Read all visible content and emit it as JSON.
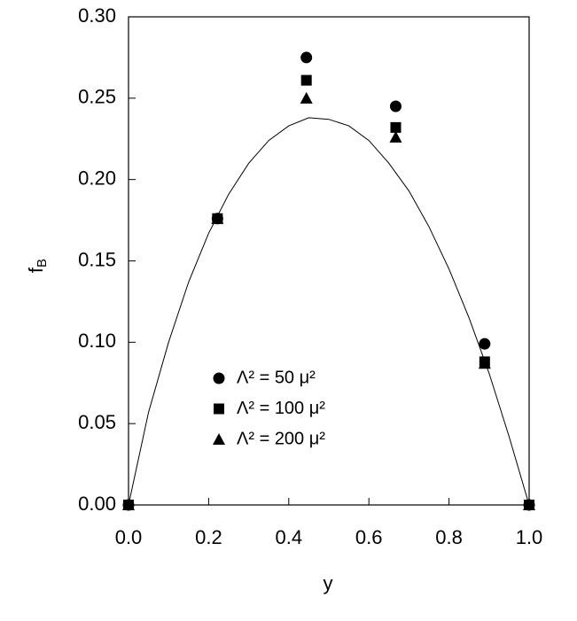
{
  "chart_data": {
    "type": "scatter",
    "x_label": "y",
    "y_label": {
      "text": "f",
      "subscript": "B"
    },
    "xlim": [
      0,
      1
    ],
    "ylim": [
      0,
      0.3
    ],
    "xticks": [
      {
        "value": 0,
        "label": "0.0"
      },
      {
        "value": 0.2,
        "label": "0.2"
      },
      {
        "value": 0.4,
        "label": "0.4"
      },
      {
        "value": 0.6,
        "label": "0.6"
      },
      {
        "value": 0.8,
        "label": "0.8"
      },
      {
        "value": 1,
        "label": "1.0"
      }
    ],
    "yticks": [
      {
        "value": 0,
        "label": "0.00"
      },
      {
        "value": 0.05,
        "label": "0.05"
      },
      {
        "value": 0.1,
        "label": "0.10"
      },
      {
        "value": 0.15,
        "label": "0.15"
      },
      {
        "value": 0.2,
        "label": "0.20"
      },
      {
        "value": 0.25,
        "label": "0.25"
      },
      {
        "value": 0.3,
        "label": "0.30"
      }
    ],
    "x": [
      0,
      0.222,
      0.444,
      0.667,
      0.889,
      1.0
    ],
    "series": [
      {
        "name": "Λ² = 50 μ²",
        "marker": "circle",
        "color": "#000000",
        "values": [
          0,
          0.176,
          0.275,
          0.245,
          0.099,
          0
        ]
      },
      {
        "name": "Λ² = 100 μ²",
        "marker": "square",
        "color": "#000000",
        "values": [
          0,
          0.176,
          0.261,
          0.232,
          0.088,
          0
        ]
      },
      {
        "name": "Λ² = 200 μ²",
        "marker": "triangle",
        "color": "#000000",
        "values": [
          0,
          0.176,
          0.25,
          0.226,
          0.087,
          0
        ]
      }
    ],
    "curve": {
      "color": "#000000",
      "x": [
        0,
        0.05,
        0.1,
        0.15,
        0.2,
        0.25,
        0.3,
        0.35,
        0.4,
        0.45,
        0.5,
        0.55,
        0.6,
        0.65,
        0.7,
        0.75,
        0.8,
        0.85,
        0.9,
        0.95,
        1
      ],
      "values": [
        0,
        0.057,
        0.1,
        0.137,
        0.167,
        0.191,
        0.21,
        0.224,
        0.233,
        0.238,
        0.237,
        0.233,
        0.224,
        0.21,
        0.193,
        0.171,
        0.145,
        0.115,
        0.081,
        0.042,
        0
      ]
    }
  }
}
